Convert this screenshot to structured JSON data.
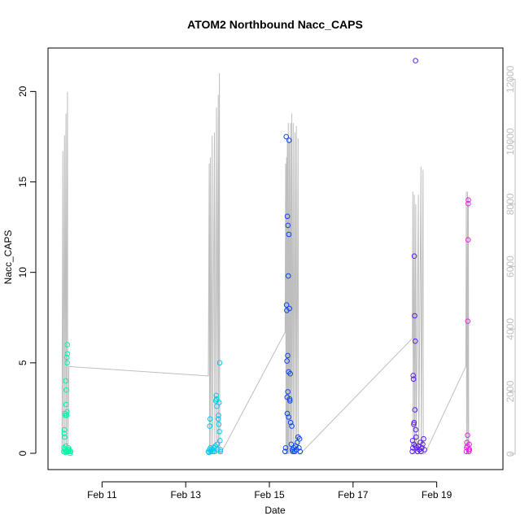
{
  "chart_data": {
    "type": "scatter",
    "title": "ATOM2 Northbound Nacc_CAPS",
    "xlabel": "Date",
    "ylabel": "Nacc_CAPS",
    "xlim": [
      "2018-02-09T17:00",
      "2018-02-20T14:00"
    ],
    "ylim": [
      -0.9,
      22.4
    ],
    "y2lim": [
      -500,
      13000
    ],
    "x_ticks": [
      {
        "value": "2018-02-11",
        "label": "Feb 11"
      },
      {
        "value": "2018-02-13",
        "label": "Feb 13"
      },
      {
        "value": "2018-02-15",
        "label": "Feb 15"
      },
      {
        "value": "2018-02-17",
        "label": "Feb 17"
      },
      {
        "value": "2018-02-19",
        "label": "Feb 19"
      }
    ],
    "y_ticks": [
      0,
      5,
      10,
      15,
      20
    ],
    "y2_ticks": [
      0,
      2000,
      4000,
      6000,
      8000,
      10000,
      12000
    ],
    "colors": {
      "grey_line": "#bebebe",
      "frame": "#000000"
    },
    "series": [
      {
        "color": "#00f5a8",
        "points": [
          [
            "2018-02-10T02:00",
            0.1
          ],
          [
            "2018-02-10T02:10",
            0.3
          ],
          [
            "2018-02-10T02:20",
            1.1
          ],
          [
            "2018-02-10T02:25",
            1.3
          ],
          [
            "2018-02-10T02:35",
            0.9
          ],
          [
            "2018-02-10T02:40",
            0.2
          ],
          [
            "2018-02-10T02:45",
            2.2
          ],
          [
            "2018-02-10T02:55",
            2.1
          ],
          [
            "2018-02-10T03:00",
            0.05
          ],
          [
            "2018-02-10T03:10",
            4.0
          ],
          [
            "2018-02-10T03:15",
            0.4
          ],
          [
            "2018-02-10T03:20",
            2.7
          ],
          [
            "2018-02-10T03:30",
            3.5
          ],
          [
            "2018-02-10T03:35",
            0.1
          ],
          [
            "2018-02-10T03:40",
            2.1
          ],
          [
            "2018-02-10T03:50",
            5.3
          ],
          [
            "2018-02-10T03:55",
            2.3
          ],
          [
            "2018-02-10T04:00",
            5.0
          ],
          [
            "2018-02-10T04:05",
            6.0
          ],
          [
            "2018-02-10T04:10",
            5.5
          ],
          [
            "2018-02-10T04:20",
            0.2
          ],
          [
            "2018-02-10T04:30",
            0.1
          ],
          [
            "2018-02-10T04:40",
            0.3
          ],
          [
            "2018-02-10T05:00",
            0.1
          ],
          [
            "2018-02-10T05:20",
            0.2
          ],
          [
            "2018-02-10T05:40",
            0.0
          ],
          [
            "2018-02-10T06:00",
            0.1
          ]
        ]
      },
      {
        "color": "#00c8f0",
        "points": [
          [
            "2018-02-13T13:00",
            0.1
          ],
          [
            "2018-02-13T13:20",
            0.05
          ],
          [
            "2018-02-13T13:40",
            0.2
          ],
          [
            "2018-02-13T13:50",
            1.5
          ],
          [
            "2018-02-13T14:00",
            1.9
          ],
          [
            "2018-02-13T14:10",
            0.3
          ],
          [
            "2018-02-13T14:30",
            0.1
          ],
          [
            "2018-02-13T15:00",
            0.2
          ],
          [
            "2018-02-13T15:30",
            0.1
          ],
          [
            "2018-02-13T16:00",
            0.3
          ],
          [
            "2018-02-13T16:30",
            0.1
          ],
          [
            "2018-02-13T17:00",
            0.4
          ],
          [
            "2018-02-13T17:20",
            2.9
          ],
          [
            "2018-02-13T17:30",
            3.2
          ],
          [
            "2018-02-13T17:40",
            3.0
          ],
          [
            "2018-02-13T17:50",
            2.6
          ],
          [
            "2018-02-13T18:00",
            0.5
          ],
          [
            "2018-02-13T18:20",
            0.2
          ],
          [
            "2018-02-13T18:40",
            1.9
          ],
          [
            "2018-02-13T18:50",
            2.1
          ],
          [
            "2018-02-13T19:00",
            1.6
          ],
          [
            "2018-02-13T19:10",
            2.8
          ],
          [
            "2018-02-13T19:20",
            1.2
          ],
          [
            "2018-02-13T19:30",
            5.0
          ],
          [
            "2018-02-13T19:40",
            0.7
          ],
          [
            "2018-02-13T19:50",
            0.2
          ],
          [
            "2018-02-13T20:00",
            0.1
          ]
        ]
      },
      {
        "color": "#0a46f0",
        "points": [
          [
            "2018-02-15T09:00",
            0.1
          ],
          [
            "2018-02-15T09:20",
            0.3
          ],
          [
            "2018-02-15T09:40",
            17.5
          ],
          [
            "2018-02-15T09:50",
            8.2
          ],
          [
            "2018-02-15T10:00",
            7.9
          ],
          [
            "2018-02-15T10:10",
            3.1
          ],
          [
            "2018-02-15T10:20",
            13.1
          ],
          [
            "2018-02-15T10:30",
            5.4
          ],
          [
            "2018-02-15T10:40",
            12.6
          ],
          [
            "2018-02-15T10:50",
            9.8
          ],
          [
            "2018-02-15T11:00",
            4.5
          ],
          [
            "2018-02-15T11:10",
            12.1
          ],
          [
            "2018-02-15T11:20",
            17.3
          ],
          [
            "2018-02-15T11:30",
            8.0
          ],
          [
            "2018-02-15T11:40",
            3.0
          ],
          [
            "2018-02-15T11:50",
            2.9
          ],
          [
            "2018-02-15T12:00",
            4.4
          ],
          [
            "2018-02-15T12:10",
            1.7
          ],
          [
            "2018-02-15T12:30",
            0.5
          ],
          [
            "2018-02-15T12:50",
            1.5
          ],
          [
            "2018-02-15T13:10",
            0.2
          ],
          [
            "2018-02-15T13:30",
            0.1
          ],
          [
            "2018-02-15T14:00",
            0.3
          ],
          [
            "2018-02-15T14:30",
            0.1
          ],
          [
            "2018-02-15T15:00",
            0.4
          ],
          [
            "2018-02-15T15:30",
            0.2
          ],
          [
            "2018-02-15T16:00",
            0.6
          ],
          [
            "2018-02-15T16:30",
            0.9
          ],
          [
            "2018-02-15T17:00",
            0.3
          ],
          [
            "2018-02-15T17:20",
            0.8
          ],
          [
            "2018-02-15T17:40",
            0.1
          ],
          [
            "2018-02-15T10:05",
            5.1
          ],
          [
            "2018-02-15T10:15",
            2.2
          ],
          [
            "2018-02-15T10:35",
            3.4
          ],
          [
            "2018-02-15T11:05",
            2.0
          ]
        ]
      },
      {
        "color": "#5a1ef0",
        "points": [
          [
            "2018-02-18T10:00",
            0.1
          ],
          [
            "2018-02-18T10:20",
            0.3
          ],
          [
            "2018-02-18T10:30",
            4.3
          ],
          [
            "2018-02-18T10:40",
            4.1
          ],
          [
            "2018-02-18T10:50",
            1.6
          ],
          [
            "2018-02-18T11:00",
            1.7
          ],
          [
            "2018-02-18T11:10",
            10.9
          ],
          [
            "2018-02-18T11:20",
            7.6
          ],
          [
            "2018-02-18T11:30",
            2.4
          ],
          [
            "2018-02-18T11:40",
            6.2
          ],
          [
            "2018-02-18T11:50",
            21.7
          ],
          [
            "2018-02-18T12:00",
            1.3
          ],
          [
            "2018-02-18T12:10",
            0.9
          ],
          [
            "2018-02-18T12:30",
            0.3
          ],
          [
            "2018-02-18T13:00",
            0.1
          ],
          [
            "2018-02-18T13:30",
            0.4
          ],
          [
            "2018-02-18T14:00",
            0.2
          ],
          [
            "2018-02-18T14:30",
            0.6
          ],
          [
            "2018-02-18T15:00",
            0.1
          ],
          [
            "2018-02-18T15:30",
            0.3
          ],
          [
            "2018-02-18T16:00",
            0.5
          ],
          [
            "2018-02-18T16:30",
            0.8
          ],
          [
            "2018-02-18T17:00",
            0.2
          ],
          [
            "2018-02-18T10:10",
            0.7
          ],
          [
            "2018-02-18T10:55",
            0.5
          ],
          [
            "2018-02-18T11:45",
            0.4
          ]
        ]
      },
      {
        "color": "#e628e6",
        "points": [
          [
            "2018-02-19T17:00",
            0.1
          ],
          [
            "2018-02-19T17:10",
            0.3
          ],
          [
            "2018-02-19T17:20",
            0.6
          ],
          [
            "2018-02-19T17:30",
            0.4
          ],
          [
            "2018-02-19T17:40",
            1.0
          ],
          [
            "2018-02-19T17:50",
            7.3
          ],
          [
            "2018-02-19T18:00",
            11.8
          ],
          [
            "2018-02-19T18:05",
            13.8
          ],
          [
            "2018-02-19T18:10",
            14.0
          ],
          [
            "2018-02-19T18:20",
            0.2
          ],
          [
            "2018-02-19T18:30",
            0.1
          ],
          [
            "2018-02-19T18:40",
            0.5
          ],
          [
            "2018-02-19T18:50",
            0.2
          ]
        ]
      }
    ],
    "secondary_series": {
      "color": "#bebebe",
      "points": [
        [
          "2018-02-10T01:00",
          0
        ],
        [
          "2018-02-10T01:30",
          9700
        ],
        [
          "2018-02-10T01:40",
          0
        ],
        [
          "2018-02-10T02:30",
          10200
        ],
        [
          "2018-02-10T02:40",
          0
        ],
        [
          "2018-02-10T03:20",
          10900
        ],
        [
          "2018-02-10T03:30",
          0
        ],
        [
          "2018-02-10T04:10",
          11600
        ],
        [
          "2018-02-10T04:20",
          0
        ],
        [
          "2018-02-10T05:00",
          2800
        ],
        [
          "2018-02-13T13:00",
          2500
        ],
        [
          "2018-02-13T13:30",
          9300
        ],
        [
          "2018-02-13T13:40",
          0
        ],
        [
          "2018-02-13T14:10",
          9500
        ],
        [
          "2018-02-13T14:20",
          0
        ],
        [
          "2018-02-13T15:10",
          10200
        ],
        [
          "2018-02-13T15:20",
          0
        ],
        [
          "2018-02-13T16:30",
          10300
        ],
        [
          "2018-02-13T16:40",
          0
        ],
        [
          "2018-02-13T17:40",
          11100
        ],
        [
          "2018-02-13T17:50",
          0
        ],
        [
          "2018-02-13T18:40",
          11500
        ],
        [
          "2018-02-13T18:50",
          0
        ],
        [
          "2018-02-13T19:20",
          12200
        ],
        [
          "2018-02-13T19:30",
          0
        ],
        [
          "2018-02-13T20:00",
          0
        ],
        [
          "2018-02-15T09:00",
          3900
        ],
        [
          "2018-02-15T09:20",
          9300
        ],
        [
          "2018-02-15T09:30",
          0
        ],
        [
          "2018-02-15T09:50",
          9500
        ],
        [
          "2018-02-15T10:00",
          0
        ],
        [
          "2018-02-15T10:20",
          10100
        ],
        [
          "2018-02-15T10:30",
          0
        ],
        [
          "2018-02-15T10:50",
          10600
        ],
        [
          "2018-02-15T11:00",
          0
        ],
        [
          "2018-02-15T11:30",
          10000
        ],
        [
          "2018-02-15T11:40",
          0
        ],
        [
          "2018-02-15T12:10",
          10600
        ],
        [
          "2018-02-15T12:20",
          0
        ],
        [
          "2018-02-15T12:50",
          10900
        ],
        [
          "2018-02-15T13:00",
          0
        ],
        [
          "2018-02-15T13:40",
          10600
        ],
        [
          "2018-02-15T13:50",
          0
        ],
        [
          "2018-02-15T14:40",
          10300
        ],
        [
          "2018-02-15T14:50",
          0
        ],
        [
          "2018-02-15T15:30",
          10500
        ],
        [
          "2018-02-15T15:40",
          0
        ],
        [
          "2018-02-15T16:30",
          10100
        ],
        [
          "2018-02-15T16:40",
          0
        ],
        [
          "2018-02-15T17:40",
          0
        ],
        [
          "2018-02-18T10:00",
          3700
        ],
        [
          "2018-02-18T10:20",
          8400
        ],
        [
          "2018-02-18T10:30",
          0
        ],
        [
          "2018-02-18T11:10",
          8300
        ],
        [
          "2018-02-18T11:20",
          0
        ],
        [
          "2018-02-18T12:00",
          8000
        ],
        [
          "2018-02-18T12:10",
          0
        ],
        [
          "2018-02-18T13:30",
          8300
        ],
        [
          "2018-02-18T13:40",
          0
        ],
        [
          "2018-02-18T15:00",
          9200
        ],
        [
          "2018-02-18T15:10",
          0
        ],
        [
          "2018-02-18T16:10",
          9100
        ],
        [
          "2018-02-18T16:20",
          0
        ],
        [
          "2018-02-18T17:10",
          0
        ],
        [
          "2018-02-19T16:40",
          2800
        ],
        [
          "2018-02-19T17:00",
          8400
        ],
        [
          "2018-02-19T17:10",
          0
        ],
        [
          "2018-02-19T17:40",
          8400
        ],
        [
          "2018-02-19T17:50",
          0
        ],
        [
          "2018-02-19T18:10",
          8200
        ],
        [
          "2018-02-19T18:20",
          0
        ],
        [
          "2018-02-19T18:50",
          0
        ]
      ]
    }
  }
}
